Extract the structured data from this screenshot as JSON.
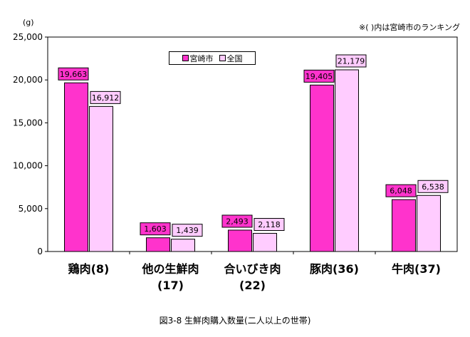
{
  "note": "※( )内は宮崎市のランキング",
  "caption": "図3-8 生鮮肉購入数量(二人以上の世帯)",
  "colors": {
    "miyazaki": "#ff33cc",
    "national": "#ffccff",
    "border": "#000000"
  },
  "chart_data": {
    "type": "bar",
    "ylabel": "(g)",
    "ylim": [
      0,
      25000
    ],
    "yticks": [
      "0",
      "5,000",
      "10,000",
      "15,000",
      "20,000",
      "25,000"
    ],
    "grid": false,
    "legend_position": "top-left",
    "categories": [
      [
        "鶏肉(8)"
      ],
      [
        "他の生鮮肉",
        "(17)"
      ],
      [
        "合いびき肉",
        "(22)"
      ],
      [
        "豚肉(36)"
      ],
      [
        "牛肉(37)"
      ]
    ],
    "series": [
      {
        "name": "宮崎市",
        "values": [
          19663,
          1603,
          2493,
          19405,
          6048
        ],
        "labels": [
          "19,663",
          "1,603",
          "2,493",
          "19,405",
          "6,048"
        ]
      },
      {
        "name": "全国",
        "values": [
          16912,
          1439,
          2118,
          21179,
          6538
        ],
        "labels": [
          "16,912",
          "1,439",
          "2,118",
          "21,179",
          "6,538"
        ]
      }
    ]
  }
}
